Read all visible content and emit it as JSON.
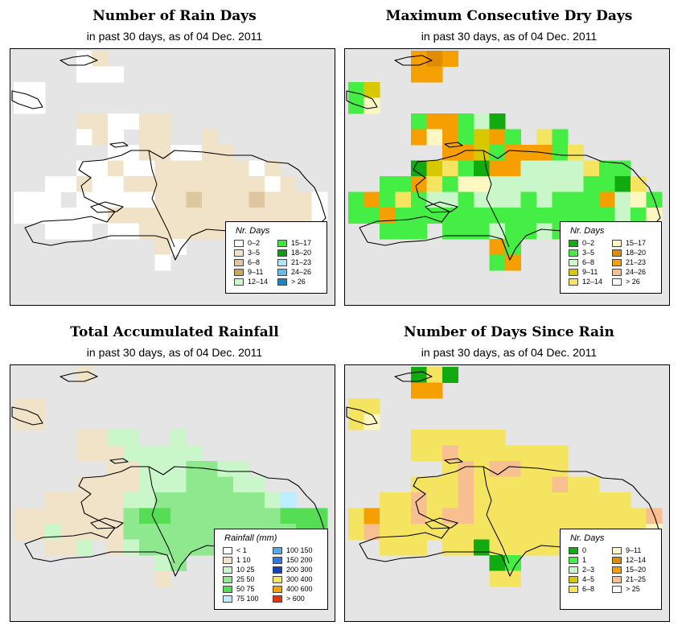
{
  "map_extent": {
    "cols": 20,
    "rows": 16
  },
  "panels": [
    {
      "id": "rain-days",
      "title": "Number of Rain Days",
      "subtitle": "in past 30 days, as of  04 Dec. 2011",
      "legend_title": "Nr. Days",
      "legend": [
        {
          "label": "0–2",
          "color": "#ffffff"
        },
        {
          "label": "3–5",
          "color": "#f1e3c7"
        },
        {
          "label": "6–8",
          "color": "#dec79e"
        },
        {
          "label": "9–11",
          "color": "#caa75a"
        },
        {
          "label": "12–14",
          "color": "#c9f7c9"
        },
        {
          "label": "15–17",
          "color": "#33ee33"
        },
        {
          "label": "18–20",
          "color": "#119911"
        },
        {
          "label": "21–23",
          "color": "#aae6f5"
        },
        {
          "label": "24–26",
          "color": "#66bbee"
        },
        {
          "label": "> 26",
          "color": "#1188cc"
        }
      ],
      "grid": [
        "....AB..............",
        "....AAA.............",
        "AA..................",
        "AA..................",
        "....BBAABB..........",
        "....ABA.BB..B.......",
        "......AABBAABB......",
        "....AABAABBBBBBAB...",
        "..AABAABBBBBBBBBAB..",
        "AAA.AAAAABBCBBBCBBBA",
        "AAAAAABBBBBBBBBBBBBA",
        "..AAA.AABBBBBBBBBBC.",
        ".........BA.........",
        ".........A..........",
        "....................",
        "...................."
      ]
    },
    {
      "id": "max-dry-days",
      "title": "Maximum Consecutive Dry Days",
      "subtitle": "in past 30 days, as of  04 Dec. 2011",
      "legend_title": "Nr. Days",
      "legend": [
        {
          "label": "0–2",
          "color": "#11aa11"
        },
        {
          "label": "3–5",
          "color": "#44ee44"
        },
        {
          "label": "6–8",
          "color": "#c9f7c9"
        },
        {
          "label": "9–11",
          "color": "#d8c800"
        },
        {
          "label": "12–14",
          "color": "#f5e460"
        },
        {
          "label": "15–17",
          "color": "#fdf8c2"
        },
        {
          "label": "18–20",
          "color": "#e08c00"
        },
        {
          "label": "21–23",
          "color": "#f5a000"
        },
        {
          "label": "24–26",
          "color": "#f8c090"
        },
        {
          "label": "> 26",
          "color": "#ffffff"
        }
      ],
      "grid": [
        "....ZYZ.............",
        "....HH..............",
        "BD..................",
        "BF..................",
        "....BHHBCA..........",
        "....HFHBDHB.EB......",
        "......HHDBHHHBE.....",
        "....ADEBAHHCCCCEBB..",
        "..BBHEBFFCCCCCCBBAE.",
        "BHBEBCCBCCCBCBBBHCFB",
        "BBHBBBBBBBBBBBBBBCBF",
        "..BBB.BBBCBBCBBB.BC.",
        ".........HB.........",
        ".........BH.........",
        "....................",
        "...................."
      ]
    },
    {
      "id": "total-rainfall",
      "title": "Total Accumulated Rainfall",
      "subtitle": "in past 30 days, as of  04 Dec. 2011",
      "legend_title": "Rainfall (mm)",
      "legend": [
        {
          "label": "< 1",
          "color": "#ffffff"
        },
        {
          "label": "1   10",
          "color": "#f1e3c7"
        },
        {
          "label": "10   25",
          "color": "#c9f7c9"
        },
        {
          "label": "25   50",
          "color": "#8ee88e"
        },
        {
          "label": "50   75",
          "color": "#55dd55"
        },
        {
          "label": "75   100",
          "color": "#bbeeff"
        },
        {
          "label": "100   150",
          "color": "#55aaee"
        },
        {
          "label": "150   200",
          "color": "#3377dd"
        },
        {
          "label": "200   300",
          "color": "#1144bb"
        },
        {
          "label": "300   400",
          "color": "#f5e460"
        },
        {
          "label": "400   600",
          "color": "#f5a000"
        },
        {
          "label": "> 600",
          "color": "#ee3300"
        }
      ],
      "grid": [
        "....B...............",
        "....................",
        "BB..................",
        "BB..................",
        "....BBCC..C.........",
        "....BBBCCCCC........",
        "......BBCCCDDCC.....",
        "....BBBBCCCDDDCC....",
        "..BBBBBCCDDDDDDDCF..",
        "BBBBBBBDEEDDDDDDDEEE",
        "BBCBBBBDDDDDDDDDDDEE",
        "..BBC.BCDDDDDDDDCCC.",
        ".........CD.........",
        ".........B..........",
        "....................",
        "...................."
      ]
    },
    {
      "id": "days-since-rain",
      "title": "Number of Days Since Rain",
      "subtitle": "in past 30 days, as of  04 Dec. 2011",
      "legend_title": "Nr. Days",
      "legend": [
        {
          "label": "0",
          "color": "#11aa11"
        },
        {
          "label": "1",
          "color": "#44ee44"
        },
        {
          "label": "2–3",
          "color": "#c9f7c9"
        },
        {
          "label": "4–5",
          "color": "#d8c800"
        },
        {
          "label": "6–8",
          "color": "#f5e460"
        },
        {
          "label": "9–11",
          "color": "#fdf8c2"
        },
        {
          "label": "12–14",
          "color": "#e08c00"
        },
        {
          "label": "15–20",
          "color": "#f5a000"
        },
        {
          "label": "21–25",
          "color": "#f8c090"
        },
        {
          "label": "> 25",
          "color": "#ffffff"
        }
      ],
      "grid": [
        "....WEW.............",
        "....HH..............",
        "EE..................",
        "EF..................",
        "....EEEEEE..........",
        "....EEIEEEEEEE......",
        "......EIEIIEEE......",
        "....EEEIEEEEEIEE....",
        "..EEIEEIEEEEEEEEEE..",
        "EHEEIEIIEEEEEEEEEEEI",
        "EIEEEEEEEEEEEEEEEEEF",
        "..EEE.EEAEEEEEEEEEE.",
        ".........AB.........",
        ".........EE.........",
        "....................",
        "...................."
      ]
    }
  ]
}
